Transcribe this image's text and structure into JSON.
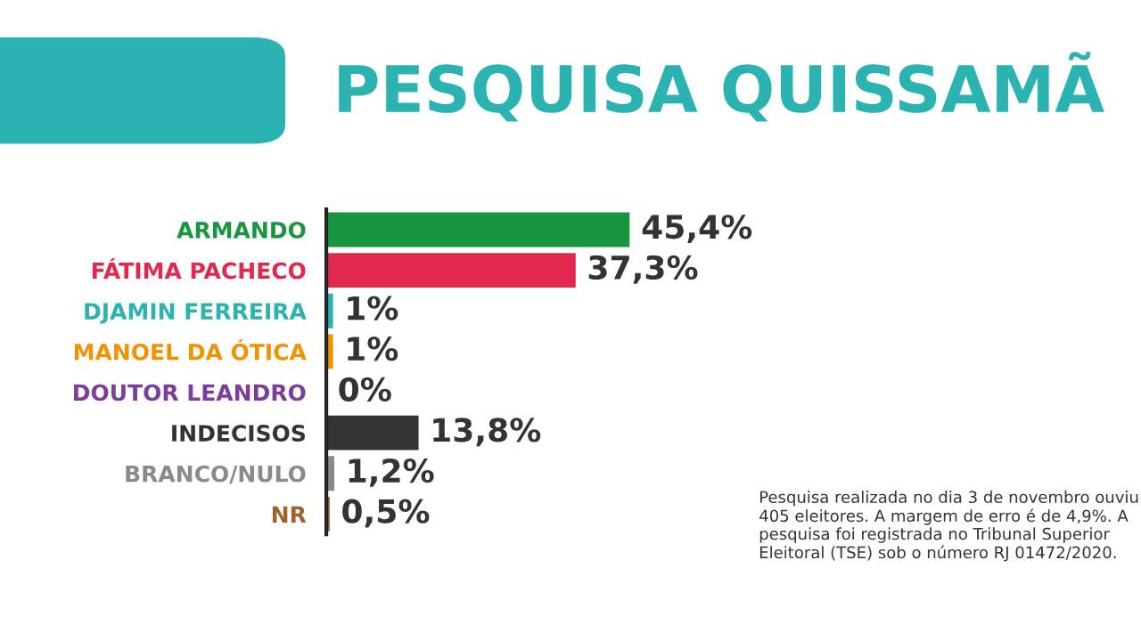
{
  "chart_data": {
    "type": "bar",
    "orientation": "horizontal",
    "title": "PESQUISA QUISSAMÃ",
    "categories": [
      "ARMANDO",
      "FÁTIMA PACHECO",
      "DJAMIN FERREIRA",
      "MANOEL DA ÓTICA",
      "DOUTOR LEANDRO",
      "INDECISOS",
      "BRANCO/NULO",
      "NR"
    ],
    "values": [
      45.4,
      37.3,
      1,
      1,
      0,
      13.8,
      1.2,
      0.5
    ],
    "colors": [
      "#17963f",
      "#e2284f",
      "#2bb3b1",
      "#f39200",
      "#7b3f99",
      "#333333",
      "#8a8a8a",
      "#a0622d"
    ],
    "value_labels": [
      "45,4%",
      "37,3%",
      "1%",
      "1%",
      "0%",
      "13,8%",
      "1,2%",
      "0,5%"
    ],
    "annotations": [
      "Pesquisa realizada no dia 3 de novembro ouviu 405 eleitores. A margem de erro é de 4,9%. A pesquisa foi registrada no Tribunal Superior Eleitoral (TSE) sob o número RJ 01472/2020."
    ],
    "legend": false
  }
}
